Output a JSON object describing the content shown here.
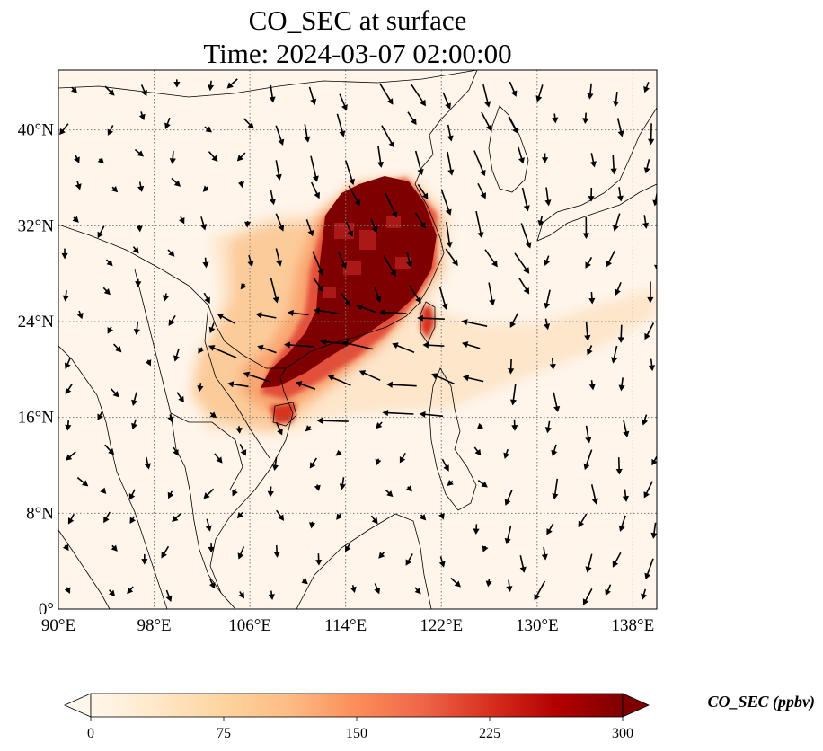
{
  "title": {
    "line1": "CO_SEC at surface",
    "line2": "Time: 2024-03-07 02:00:00"
  },
  "map": {
    "lon_range": [
      90,
      140
    ],
    "lat_range": [
      0,
      45
    ],
    "lon_ticks": [
      {
        "value": 90,
        "label": "90°E"
      },
      {
        "value": 98,
        "label": "98°E"
      },
      {
        "value": 106,
        "label": "106°E"
      },
      {
        "value": 114,
        "label": "114°E"
      },
      {
        "value": 122,
        "label": "122°E"
      },
      {
        "value": 130,
        "label": "130°E"
      },
      {
        "value": 138,
        "label": "138°E"
      }
    ],
    "lat_ticks": [
      {
        "value": 0,
        "label": "0°"
      },
      {
        "value": 8,
        "label": "8°N"
      },
      {
        "value": 16,
        "label": "16°N"
      },
      {
        "value": 24,
        "label": "24°N"
      },
      {
        "value": 32,
        "label": "32°N"
      },
      {
        "value": 40,
        "label": "40°N"
      }
    ],
    "gridlines": true,
    "background_color": "#fff5eb",
    "wind_vectors": true
  },
  "colorbar": {
    "label": "CO_SEC (ppbv)",
    "min": 0,
    "max": 300,
    "extend": "both",
    "colormap": "OrRd",
    "ticks": [
      {
        "value": 0,
        "label": "0"
      },
      {
        "value": 75,
        "label": "75"
      },
      {
        "value": 150,
        "label": "150"
      },
      {
        "value": 225,
        "label": "225"
      },
      {
        "value": 300,
        "label": "300"
      }
    ],
    "colors": [
      "#fff7ec",
      "#fee8c8",
      "#fdd49e",
      "#fdbb84",
      "#fc8d59",
      "#ef6548",
      "#d7301f",
      "#b30000",
      "#7f0000"
    ]
  }
}
